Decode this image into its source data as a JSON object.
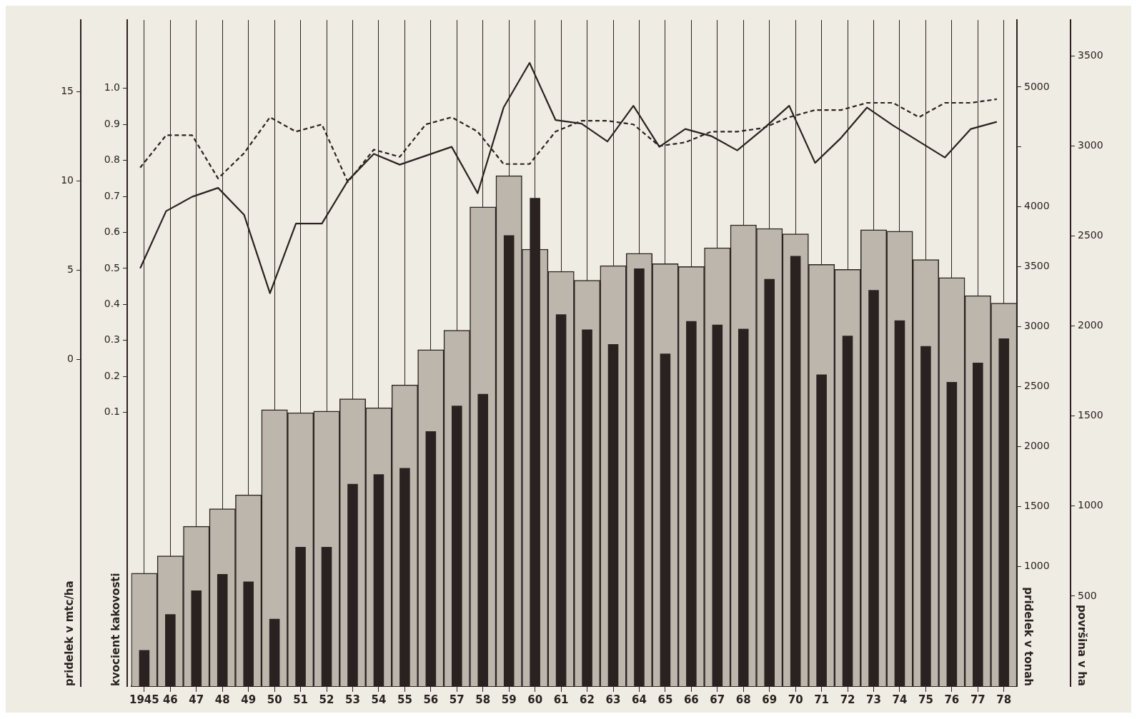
{
  "chart_data": [
    {
      "type": "bar",
      "categories": [
        "1945",
        "46",
        "47",
        "48",
        "49",
        "50",
        "51",
        "52",
        "53",
        "54",
        "55",
        "56",
        "57",
        "58",
        "59",
        "60",
        "61",
        "62",
        "63",
        "64",
        "65",
        "66",
        "67",
        "68",
        "69",
        "70",
        "71",
        "72",
        "73",
        "74",
        "75",
        "76",
        "77",
        "78"
      ],
      "series": [
        {
          "color": "#bdb6ad",
          "values": [
            627,
            723,
            888,
            985,
            1062,
            1535,
            1519,
            1527,
            1596,
            1546,
            1673,
            1869,
            1977,
            2662,
            2835,
            2427,
            2304,
            2254,
            2335,
            2404,
            2346,
            2331,
            2435,
            2562,
            2542,
            2512,
            2342,
            2315,
            2535,
            2527,
            2369,
            2269,
            2169,
            2127
          ]
        },
        {
          "axis": "y2",
          "color": "#2a2220",
          "values": [
            301,
            601,
            798,
            936,
            873,
            561,
            1162,
            1162,
            1688,
            1769,
            1821,
            2127,
            2341,
            2439,
            3763,
            4075,
            3104,
            2977,
            2855,
            3486,
            2775,
            3046,
            3017,
            2983,
            3399,
            3590,
            2601,
            2925,
            3306,
            3052,
            2838,
            2538,
            2699,
            2902
          ]
        }
      ],
      "ylabel": "površina v ha",
      "y2label": "pridelek v tonah",
      "ylim": [
        0,
        3700
      ],
      "yticks": [
        500,
        1000,
        1500,
        2000,
        2500,
        3000,
        3500
      ],
      "y2lim": [
        0,
        5560
      ],
      "y2ticks": [
        1000,
        1500,
        2000,
        2500,
        3000,
        3500,
        4000,
        {
          "value": 4500,
          "label": null
        },
        5000
      ],
      "grid": "x"
    },
    {
      "type": "line",
      "categories": [
        "1945",
        "46",
        "47",
        "48",
        "49",
        "50",
        "51",
        "52",
        "53",
        "54",
        "55",
        "56",
        "57",
        "58",
        "59",
        "60",
        "61",
        "62",
        "63",
        "64",
        "65",
        "66",
        "67",
        "68",
        "69",
        "70",
        "71",
        "72",
        "73",
        "74",
        "75",
        "76",
        "77",
        "78"
      ],
      "series": [
        {
          "color": "#2a2220",
          "line_style": "solid",
          "values": [
            5.1,
            8.3,
            9.1,
            9.6,
            8.1,
            3.7,
            7.6,
            7.6,
            10.0,
            11.5,
            10.9,
            11.4,
            11.9,
            9.3,
            14.1,
            16.6,
            13.4,
            13.2,
            12.2,
            14.2,
            11.9,
            12.9,
            12.5,
            11.7,
            12.9,
            14.2,
            11.0,
            12.4,
            14.1,
            13.1,
            12.2,
            11.3,
            12.9,
            13.3
          ]
        },
        {
          "axis": "y2",
          "color": "#2a2220",
          "line_style": "dashed",
          "values": [
            0.78,
            0.87,
            0.87,
            0.75,
            0.82,
            0.92,
            0.88,
            0.9,
            0.74,
            0.83,
            0.81,
            0.9,
            0.92,
            0.88,
            0.79,
            0.79,
            0.88,
            0.91,
            0.91,
            0.9,
            0.84,
            0.85,
            0.88,
            0.88,
            0.89,
            0.92,
            0.94,
            0.94,
            0.96,
            0.96,
            0.92,
            0.96,
            0.96,
            0.97
          ]
        }
      ],
      "ylabel": "pridelek v mtc/ha",
      "y2label": "kvocient kakovosti",
      "ylim": [
        -18.3,
        19
      ],
      "yticks": [
        0,
        5,
        10,
        15
      ],
      "y2lim": [
        -0.66,
        1.19
      ],
      "y2ticks": [
        0.1,
        0.2,
        0.3,
        0.4,
        0.5,
        0.6,
        0.7,
        0.8,
        0.9,
        {
          "value": 1,
          "label": "1.0"
        }
      ],
      "tick_labels": "y"
    }
  ]
}
